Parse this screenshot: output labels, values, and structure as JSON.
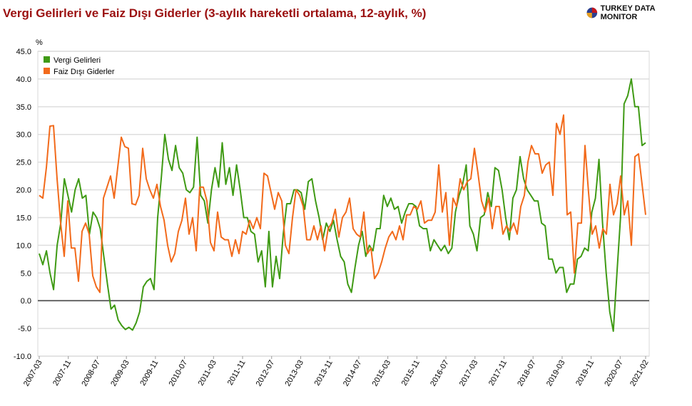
{
  "title": "Vergi Gelirleri ve Faiz Dışı Giderler (3-aylık hareketli ortalama, 12-aylık, %)",
  "logo_text": "TURKEY DATA MONITOR",
  "colors": {
    "vergi": "#3f9a14",
    "faiz": "#f26a1b",
    "title": "#9b1010"
  },
  "chart_data": {
    "type": "line",
    "title": "Vergi Gelirleri ve Faiz Dışı Giderler (3-aylık hareketli ortalama, 12-aylık, %)",
    "ylabel": "%",
    "xlabel": "",
    "ylim": [
      -10,
      45
    ],
    "yticks": [
      "45.0",
      "40.0",
      "35.0",
      "30.0",
      "25.0",
      "20.0",
      "15.0",
      "10.0",
      "5.0",
      "0.0",
      "-5.0",
      "-10.0"
    ],
    "xrange": [
      "2007-03",
      "2021-02"
    ],
    "xticks": [
      "2007-03",
      "2007-11",
      "2008-07",
      "2009-03",
      "2009-11",
      "2010-07",
      "2011-03",
      "2011-11",
      "2012-07",
      "2013-03",
      "2013-11",
      "2014-07",
      "2015-03",
      "2015-11",
      "2016-07",
      "2017-03",
      "2017-11",
      "2018-07",
      "2019-03",
      "2019-11",
      "2020-07",
      "2021-02"
    ],
    "grid": true,
    "legend": "top-left",
    "series": [
      {
        "name": "Vergi Gelirleri",
        "values": [
          8.5,
          6.5,
          9,
          5,
          2,
          10,
          14,
          22,
          19,
          16,
          20,
          22,
          18.5,
          19,
          12,
          16,
          15,
          13,
          8,
          3,
          -1.5,
          -0.8,
          -3.5,
          -4.5,
          -5.2,
          -4.8,
          -5.3,
          -4,
          -2,
          2.5,
          3.5,
          4,
          2,
          15,
          22,
          30,
          25.5,
          23.5,
          28,
          24,
          23,
          20,
          19.5,
          20.5,
          29.5,
          19,
          18,
          14,
          20,
          24,
          20.5,
          28.5,
          21,
          24,
          19,
          24.5,
          20,
          15,
          15,
          12.5,
          12,
          7,
          9,
          2.5,
          12.5,
          2.5,
          8,
          4,
          12,
          17.5,
          17.5,
          20,
          20,
          19.5,
          16.5,
          21.5,
          22,
          18,
          15,
          11,
          14,
          12.5,
          14.5,
          11,
          8,
          7,
          3,
          1.5,
          6,
          10,
          12.5,
          8,
          10,
          9,
          13,
          13,
          19,
          17,
          18.5,
          16.5,
          17,
          14,
          16,
          17.5,
          17.5,
          17,
          13.5,
          13,
          13,
          9,
          11,
          10,
          9,
          10,
          8.5,
          9.5,
          16,
          19,
          21,
          24.5,
          13.5,
          12,
          9,
          15,
          15.5,
          19.5,
          17,
          24,
          23.5,
          20,
          15,
          11,
          18.5,
          20,
          26,
          22,
          20,
          19,
          18,
          18,
          14,
          13.5,
          7.5,
          7.5,
          5,
          6,
          6,
          1.5,
          3,
          3,
          7.5,
          8,
          9.5,
          9,
          16,
          18.5,
          25.5,
          14,
          5,
          -2,
          -5.5,
          5,
          15,
          35.5,
          37,
          40,
          35,
          35,
          28,
          28.5
        ]
      },
      {
        "name": "Faiz Dışı Giderler",
        "values": [
          19,
          18.5,
          24,
          31.5,
          31.6,
          22,
          14,
          8,
          18,
          9.5,
          9.5,
          3.5,
          12.5,
          14,
          12,
          4.5,
          2.5,
          1.5,
          18.5,
          20.5,
          22.5,
          18.5,
          24,
          29.5,
          27.8,
          27.5,
          17.5,
          17.3,
          19,
          27.5,
          22,
          20,
          18.5,
          21,
          17,
          14.5,
          10,
          7,
          8.5,
          12.5,
          14.5,
          18.5,
          12,
          15,
          9,
          20.5,
          20.5,
          18,
          10.5,
          9,
          16,
          11.5,
          11,
          11,
          8,
          11,
          8.5,
          12.5,
          12,
          14.5,
          13,
          15,
          13,
          23,
          22.5,
          19.5,
          16.5,
          19.5,
          18,
          10,
          8.5,
          15,
          20,
          19,
          17,
          11,
          11,
          13.5,
          11,
          13.5,
          9,
          13,
          14,
          16.5,
          11.5,
          15,
          16,
          18.5,
          13,
          12,
          11.5,
          16,
          8.5,
          9.5,
          4,
          5,
          7,
          9.5,
          11.5,
          12.5,
          11,
          13.5,
          11,
          15.5,
          15.5,
          17,
          16.5,
          18,
          14,
          14.5,
          14.5,
          16,
          24.5,
          16,
          19.5,
          10,
          18.5,
          17,
          22,
          20,
          21.5,
          22,
          27.5,
          23,
          18,
          16,
          18.5,
          13,
          17,
          17,
          12,
          13.5,
          12.5,
          14,
          12,
          17,
          19,
          25,
          28,
          26.5,
          26.5,
          23,
          24.5,
          25,
          19,
          32,
          30,
          33.5,
          15.5,
          16,
          5,
          14,
          14,
          28,
          19.5,
          12,
          13.5,
          9.5,
          13,
          12,
          21,
          15.5,
          17.5,
          22.5,
          15.5,
          18,
          10,
          26,
          26.5,
          21,
          15.5
        ]
      }
    ]
  }
}
